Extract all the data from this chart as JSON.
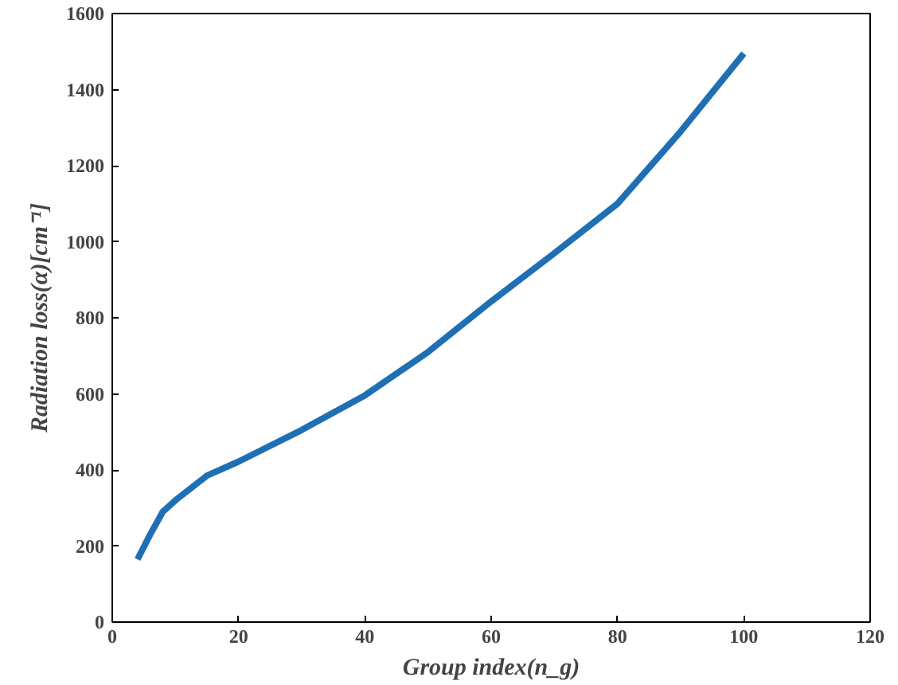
{
  "chart_data": {
    "type": "line",
    "xlabel": "Group index(n_g)",
    "ylabel": "Radiation loss(α)[cm⁻¹]",
    "x": [
      4,
      6,
      8,
      10,
      15,
      20,
      30,
      40,
      50,
      60,
      70,
      80,
      90,
      100
    ],
    "series": [
      {
        "color": "#1f6fb4",
        "values": [
          165,
          230,
          290,
          320,
          385,
          422,
          505,
          596,
          710,
          843,
          970,
          1100,
          1290,
          1495
        ]
      }
    ],
    "xlim": [
      0,
      120
    ],
    "xticks": [
      0,
      20,
      40,
      60,
      80,
      100,
      120
    ],
    "ylim": [
      0,
      1600
    ],
    "yticks": [
      0,
      200,
      400,
      600,
      800,
      1000,
      1200,
      1400,
      1600
    ],
    "line_style": "solid"
  }
}
